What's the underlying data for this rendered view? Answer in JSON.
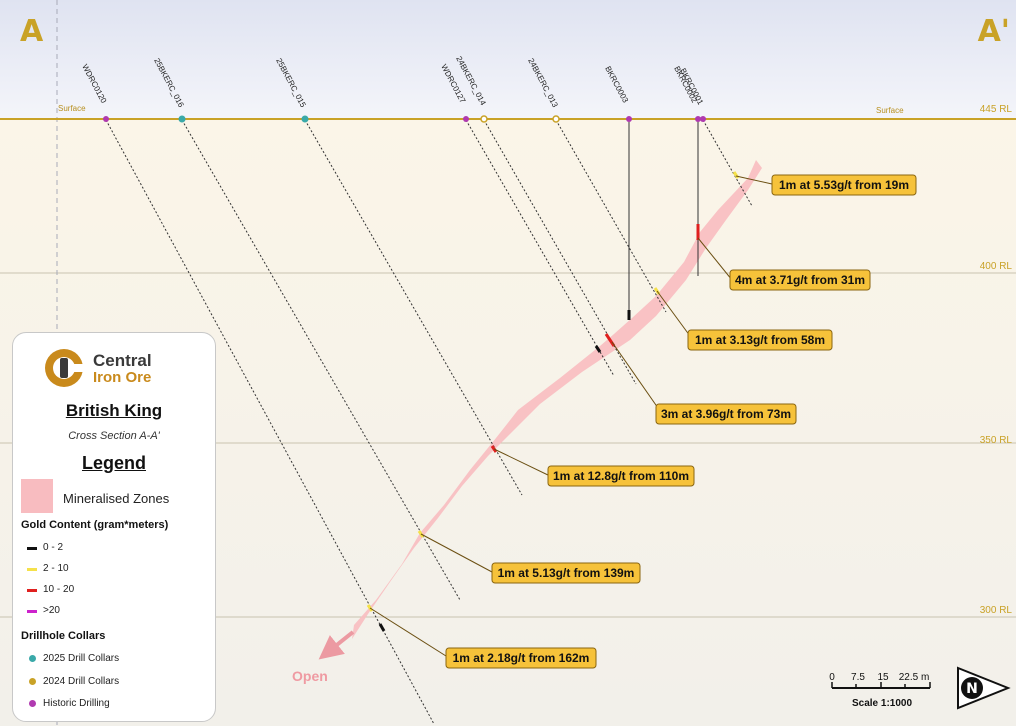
{
  "section": {
    "label_left": "A",
    "label_right": "A'",
    "surface_labels": [
      "Surface",
      "Surface"
    ],
    "rl_labels": [
      {
        "text": "445 RL",
        "rl": 445
      },
      {
        "text": "400 RL",
        "rl": 400
      },
      {
        "text": "350 RL",
        "rl": 350
      },
      {
        "text": "300 RL",
        "rl": 300
      }
    ],
    "open_label": "Open"
  },
  "drillholes": [
    {
      "name": "WDRC0120",
      "collar": "historic"
    },
    {
      "name": "25BKERC_016",
      "collar": "2025"
    },
    {
      "name": "25BKERC_015",
      "collar": "2025"
    },
    {
      "name": "WDRC0127",
      "collar": "historic"
    },
    {
      "name": "24BKERC_014",
      "collar": "2024"
    },
    {
      "name": "24BKERC_013",
      "collar": "2024"
    },
    {
      "name": "BKRC0003",
      "collar": "historic"
    },
    {
      "name": "BKRC0002",
      "collar": "historic"
    },
    {
      "name": "BKRC0001",
      "collar": "historic"
    }
  ],
  "intercepts": [
    {
      "text": "1m at 5.53g/t from 19m",
      "grade_class": "2-10"
    },
    {
      "text": "4m at 3.71g/t from 31m",
      "grade_class": "10-20"
    },
    {
      "text": "1m at 3.13g/t from 58m",
      "grade_class": "2-10"
    },
    {
      "text": "3m at 3.96g/t from 73m",
      "grade_class": "10-20"
    },
    {
      "text": "1m at 12.8g/t from 110m",
      "grade_class": "10-20"
    },
    {
      "text": "1m at 5.13g/t from 139m",
      "grade_class": "2-10"
    },
    {
      "text": "1m at 2.18g/t from 162m",
      "grade_class": "2-10"
    }
  ],
  "scale": {
    "ticks": [
      "0",
      "7.5",
      "15",
      "22.5 m"
    ],
    "label": "Scale 1:1000"
  },
  "north": {
    "letter": "N"
  },
  "legend": {
    "brand_line1": "Central",
    "brand_line2": "Iron Ore",
    "project": "British King",
    "subtitle": "Cross Section A-A'",
    "title": "Legend",
    "mineralised": "Mineralised Zones",
    "gold_heading": "Gold Content (gram*meters)",
    "gold_items": [
      {
        "label": "0 - 2",
        "color": "#111111"
      },
      {
        "label": "2 - 10",
        "color": "#f5e14a"
      },
      {
        "label": "10 - 20",
        "color": "#e0201f"
      },
      {
        "label": ">20",
        "color": "#cc22cc"
      }
    ],
    "collar_heading": "Drillhole Collars",
    "collar_items": [
      {
        "label": "2025 Drill Collars",
        "color": "#3aa9a9"
      },
      {
        "label": "2024 Drill Collars",
        "color": "#c9a227"
      },
      {
        "label": "Historic Drilling",
        "color": "#b03ab0"
      }
    ]
  },
  "colors": {
    "surface": "#c9a227",
    "zone": "#f8bcc0",
    "callout_fill": "#f6c23a",
    "callout_border": "#8a6510",
    "rl_text": "#c9a227"
  }
}
